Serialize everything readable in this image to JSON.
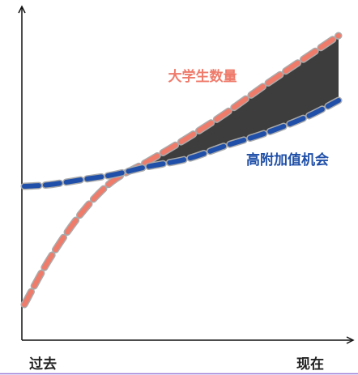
{
  "chart_data": {
    "type": "line",
    "x": [
      0,
      0.8,
      1.8,
      2.8,
      3.9,
      5.2,
      6.4,
      7.7,
      9,
      10
    ],
    "series": [
      {
        "name": "大学生数量",
        "color": "#ef7b6b",
        "values": [
          11,
          25,
          39,
          49,
          55,
          62.5,
          70,
          79,
          87.5,
          94
        ]
      },
      {
        "name": "高附加值机会",
        "color": "#1f4fa8",
        "values": [
          47.5,
          48,
          49.5,
          51,
          53.5,
          56,
          60,
          64,
          69,
          74
        ]
      }
    ],
    "xlim": [
      0,
      10
    ],
    "ylim": [
      0,
      100
    ],
    "xticks": [
      {
        "value": 0,
        "label": "过去"
      },
      {
        "value": 10,
        "label": "现在"
      }
    ],
    "fill_between_color": "#3d3d3d"
  }
}
